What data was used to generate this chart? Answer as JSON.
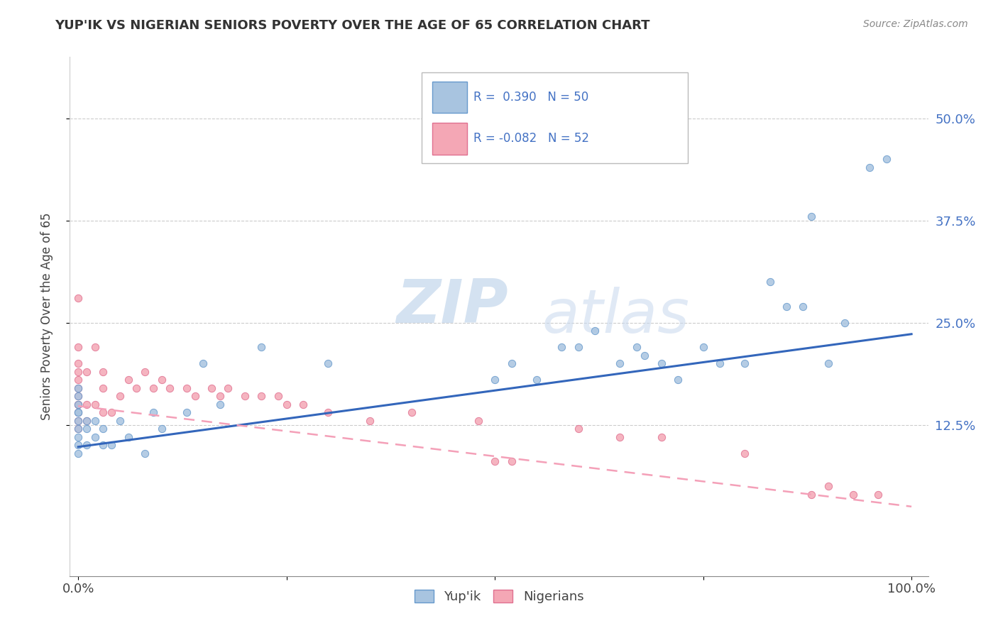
{
  "title": "YUP'IK VS NIGERIAN SENIORS POVERTY OVER THE AGE OF 65 CORRELATION CHART",
  "source": "Source: ZipAtlas.com",
  "ylabel": "Seniors Poverty Over the Age of 65",
  "r_yupik": 0.39,
  "n_yupik": 50,
  "r_nigerian": -0.082,
  "n_nigerian": 52,
  "xlim": [
    -0.01,
    1.02
  ],
  "ylim": [
    -0.06,
    0.575
  ],
  "xtick_positions": [
    0.0,
    1.0
  ],
  "xticklabels": [
    "0.0%",
    "100.0%"
  ],
  "ytick_positions": [
    0.125,
    0.25,
    0.375,
    0.5
  ],
  "yticklabels": [
    "12.5%",
    "25.0%",
    "37.5%",
    "50.0%"
  ],
  "ytick_minor": [
    0.0
  ],
  "yupik_color": "#a8c4e0",
  "yupik_edge_color": "#6699cc",
  "nigerian_color": "#f4a7b5",
  "nigerian_edge_color": "#e07090",
  "yupik_line_color": "#3366bb",
  "nigerian_line_color": "#f4a0b8",
  "legend_label_yupik": "Yup'ik",
  "legend_label_nigerian": "Nigerians",
  "watermark_zip": "ZIP",
  "watermark_atlas": "atlas",
  "background_color": "#ffffff",
  "yupik_x": [
    0.0,
    0.0,
    0.0,
    0.0,
    0.0,
    0.0,
    0.0,
    0.0,
    0.0,
    0.0,
    0.01,
    0.01,
    0.01,
    0.02,
    0.02,
    0.03,
    0.03,
    0.04,
    0.05,
    0.06,
    0.08,
    0.09,
    0.1,
    0.13,
    0.15,
    0.17,
    0.22,
    0.3,
    0.5,
    0.52,
    0.55,
    0.58,
    0.6,
    0.62,
    0.65,
    0.67,
    0.68,
    0.7,
    0.72,
    0.75,
    0.77,
    0.8,
    0.83,
    0.85,
    0.87,
    0.88,
    0.9,
    0.92,
    0.95,
    0.97
  ],
  "yupik_y": [
    0.1,
    0.12,
    0.13,
    0.14,
    0.15,
    0.16,
    0.17,
    0.14,
    0.11,
    0.09,
    0.12,
    0.13,
    0.1,
    0.11,
    0.13,
    0.1,
    0.12,
    0.1,
    0.13,
    0.11,
    0.09,
    0.14,
    0.12,
    0.14,
    0.2,
    0.15,
    0.22,
    0.2,
    0.18,
    0.2,
    0.18,
    0.22,
    0.22,
    0.24,
    0.2,
    0.22,
    0.21,
    0.2,
    0.18,
    0.22,
    0.2,
    0.2,
    0.3,
    0.27,
    0.27,
    0.38,
    0.2,
    0.25,
    0.44,
    0.45
  ],
  "nigerian_x": [
    0.0,
    0.0,
    0.0,
    0.0,
    0.0,
    0.0,
    0.0,
    0.0,
    0.0,
    0.0,
    0.0,
    0.0,
    0.01,
    0.01,
    0.01,
    0.02,
    0.02,
    0.03,
    0.03,
    0.03,
    0.04,
    0.05,
    0.06,
    0.07,
    0.08,
    0.09,
    0.1,
    0.11,
    0.13,
    0.14,
    0.16,
    0.17,
    0.18,
    0.2,
    0.22,
    0.24,
    0.25,
    0.27,
    0.3,
    0.35,
    0.4,
    0.48,
    0.5,
    0.52,
    0.6,
    0.65,
    0.7,
    0.8,
    0.88,
    0.9,
    0.93,
    0.96
  ],
  "nigerian_y": [
    0.12,
    0.13,
    0.14,
    0.15,
    0.15,
    0.16,
    0.17,
    0.18,
    0.19,
    0.2,
    0.22,
    0.28,
    0.13,
    0.15,
    0.19,
    0.15,
    0.22,
    0.14,
    0.17,
    0.19,
    0.14,
    0.16,
    0.18,
    0.17,
    0.19,
    0.17,
    0.18,
    0.17,
    0.17,
    0.16,
    0.17,
    0.16,
    0.17,
    0.16,
    0.16,
    0.16,
    0.15,
    0.15,
    0.14,
    0.13,
    0.14,
    0.13,
    0.08,
    0.08,
    0.12,
    0.11,
    0.11,
    0.09,
    0.04,
    0.05,
    0.04,
    0.04
  ],
  "yupik_line_x0": 0.0,
  "yupik_line_y0": 0.098,
  "yupik_line_x1": 1.0,
  "yupik_line_y1": 0.236,
  "nigerian_line_x0": 0.0,
  "nigerian_line_y0": 0.148,
  "nigerian_line_x1": 1.0,
  "nigerian_line_y1": 0.025
}
